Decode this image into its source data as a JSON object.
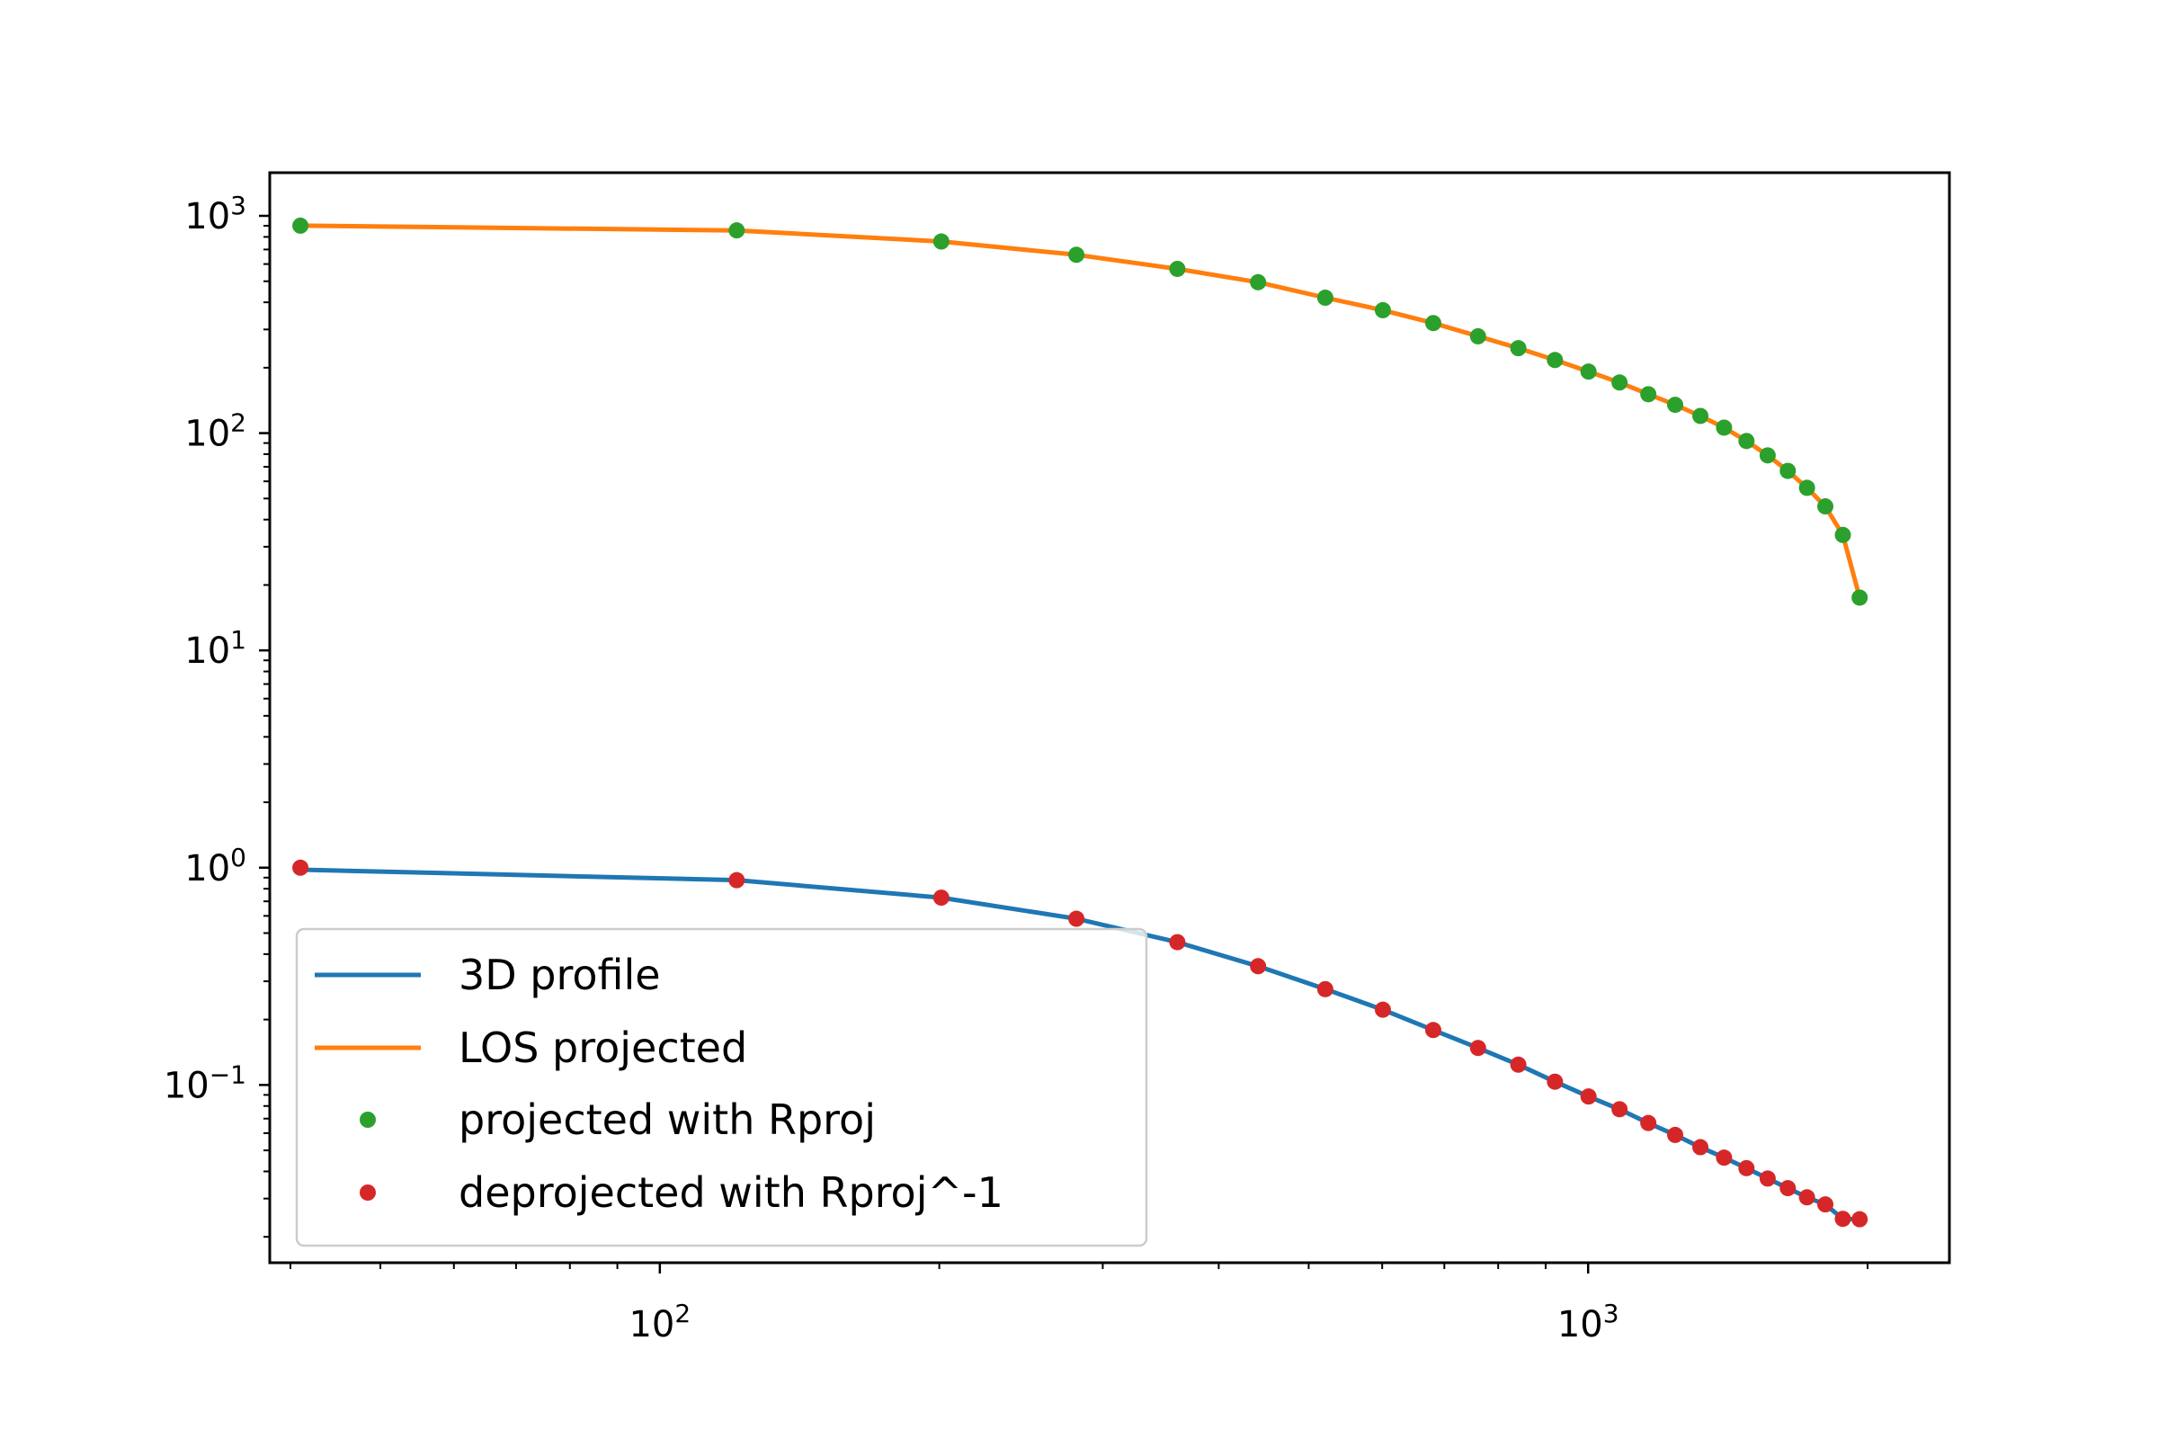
{
  "chart_data": {
    "type": "line",
    "title": "",
    "xlabel": "",
    "ylabel": "",
    "xscale": "log",
    "yscale": "log",
    "xlim": [
      38,
      2450
    ],
    "ylim": [
      0.0152,
      1580
    ],
    "x_tick_labels": [
      {
        "base": "10",
        "exp": "2",
        "value": 100
      },
      {
        "base": "10",
        "exp": "3",
        "value": 1000
      }
    ],
    "y_tick_labels": [
      {
        "base": "10",
        "exp": "3",
        "value": 1000
      },
      {
        "base": "10",
        "exp": "2",
        "value": 100
      },
      {
        "base": "10",
        "exp": "1",
        "value": 10
      },
      {
        "base": "10",
        "exp": "0",
        "value": 1
      },
      {
        "base": "10",
        "exp": "−1",
        "value": 0.1
      }
    ],
    "grid": false,
    "legend_position": "lower-left",
    "x": [
      41,
      121,
      201,
      281,
      361,
      441,
      521,
      601,
      681,
      761,
      841,
      921,
      1001,
      1081,
      1161,
      1241,
      1321,
      1401,
      1481,
      1561,
      1641,
      1721,
      1801,
      1881,
      1961
    ],
    "series": [
      {
        "name": "3D profile",
        "style": "line",
        "color": "#1f77b4",
        "values": [
          0.979,
          0.876,
          0.728,
          0.582,
          0.454,
          0.352,
          0.276,
          0.222,
          0.179,
          0.148,
          0.124,
          0.1035,
          0.0885,
          0.0773,
          0.0668,
          0.0589,
          0.0517,
          0.0463,
          0.0414,
          0.0371,
          0.0335,
          0.0304,
          0.0282,
          0.0242,
          0.0241
        ]
      },
      {
        "name": "LOS projected",
        "style": "line",
        "color": "#ff7f0e",
        "values": [
          901,
          857,
          762,
          662,
          570,
          495,
          420,
          368,
          321,
          279,
          246,
          217,
          192,
          171,
          151,
          135,
          120,
          106,
          92,
          79,
          67,
          56,
          46,
          34,
          17.5
        ]
      },
      {
        "name": "projected with Rproj",
        "style": "markers",
        "color": "#2ca02c",
        "values": [
          901,
          857,
          762,
          662,
          570,
          495,
          420,
          368,
          321,
          279,
          246,
          217,
          192,
          171,
          151,
          135,
          120,
          106,
          92,
          79,
          67,
          56,
          46,
          34,
          17.5
        ]
      },
      {
        "name": "deprojected with Rproj^-1",
        "style": "markers",
        "color": "#d62728",
        "values": [
          1.0,
          0.876,
          0.728,
          0.582,
          0.454,
          0.352,
          0.276,
          0.222,
          0.179,
          0.148,
          0.124,
          0.1035,
          0.0885,
          0.0773,
          0.0668,
          0.0589,
          0.0517,
          0.0463,
          0.0414,
          0.0371,
          0.0335,
          0.0304,
          0.0282,
          0.0242,
          0.0241
        ]
      }
    ]
  }
}
